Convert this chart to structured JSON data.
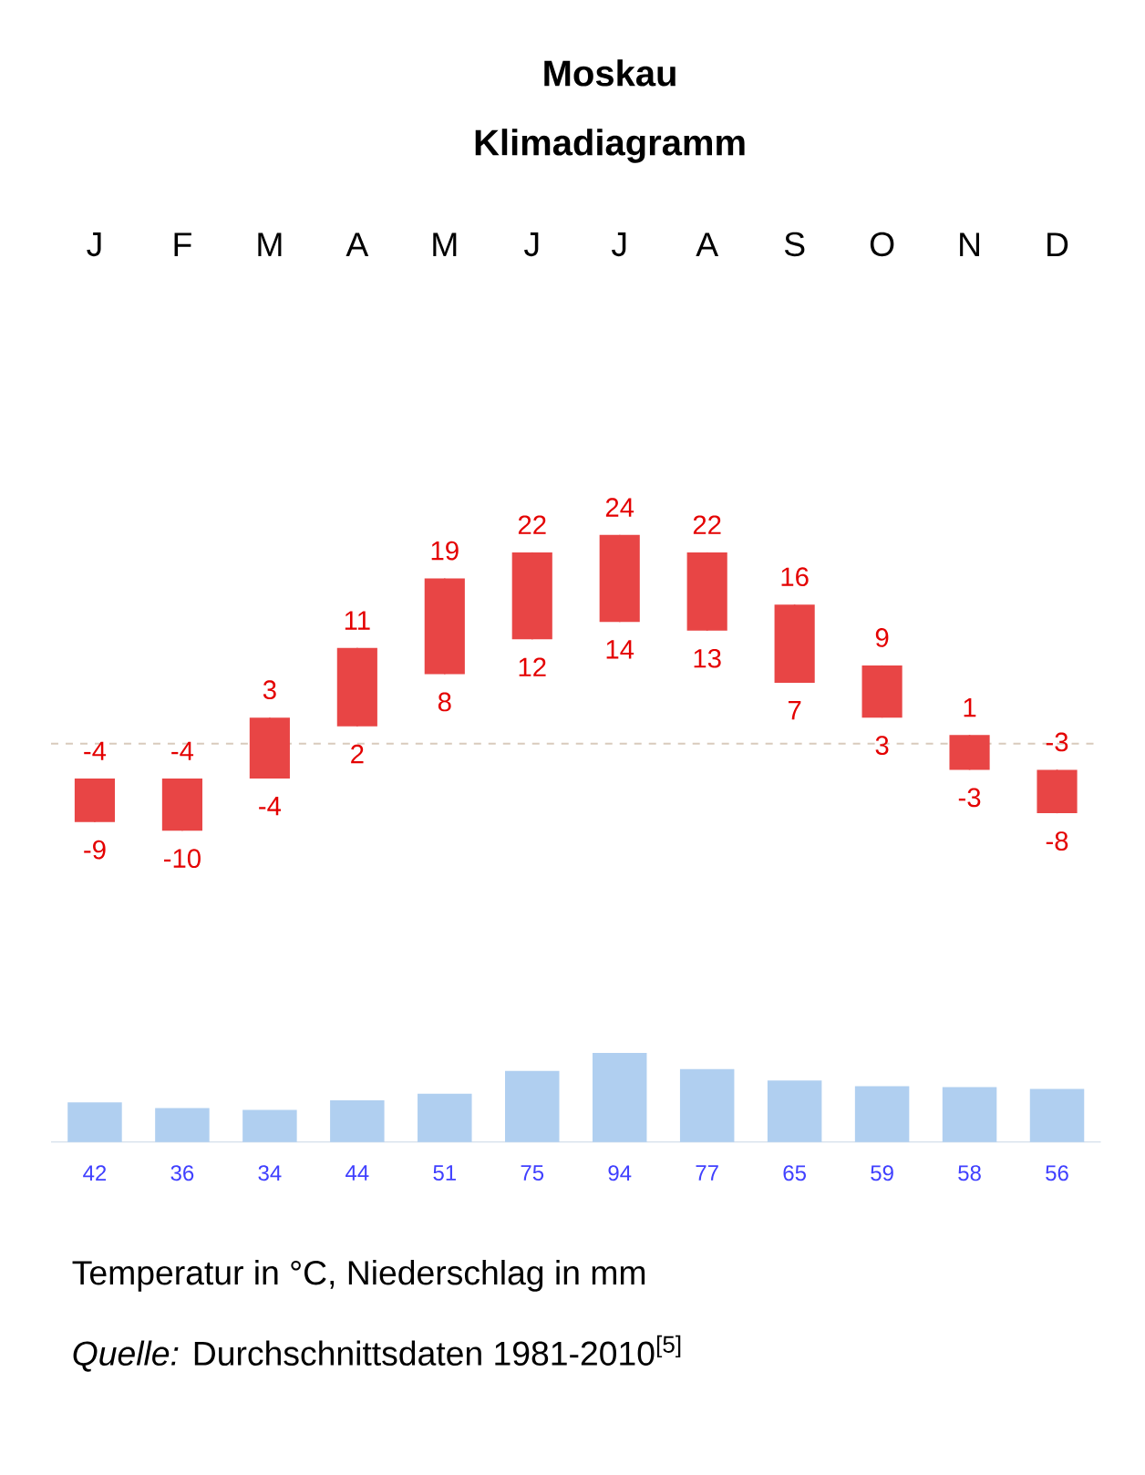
{
  "chart_data": [
    {
      "type": "candlestick",
      "title": "Moskau",
      "subtitle": "Klimadiagramm",
      "categories": [
        "J",
        "F",
        "M",
        "A",
        "M",
        "J",
        "J",
        "A",
        "S",
        "O",
        "N",
        "D"
      ],
      "ohlc": [
        [
          -9,
          -4,
          -9,
          -4
        ],
        [
          -10,
          -4,
          -10,
          -4
        ],
        [
          -4,
          3,
          -4,
          3
        ],
        [
          2,
          11,
          2,
          11
        ],
        [
          8,
          19,
          8,
          19
        ],
        [
          12,
          22,
          12,
          22
        ],
        [
          14,
          24,
          14,
          24
        ],
        [
          13,
          22,
          13,
          22
        ],
        [
          7,
          16,
          7,
          16
        ],
        [
          3,
          9,
          3,
          9
        ],
        [
          -3,
          1,
          -3,
          1
        ],
        [
          -8,
          -3,
          -8,
          -3
        ]
      ],
      "color": "#e84545",
      "tick_labels": "x",
      "annotations": [
        {
          "text": "-4",
          "x": "J",
          "y": -4
        },
        {
          "text": "-9",
          "x": "J",
          "y": -9
        },
        {
          "text": "-4",
          "x": "F",
          "y": -4
        },
        {
          "text": "-10",
          "x": "F",
          "y": -10
        },
        {
          "text": "3",
          "x": "M",
          "y": 3
        },
        {
          "text": "-4",
          "x": "M",
          "y": -4
        },
        {
          "text": "11",
          "x": "A",
          "y": 11
        },
        {
          "text": "2",
          "x": "A",
          "y": 2
        },
        "19",
        "8",
        "22",
        "12",
        "24",
        "14",
        "22",
        "13",
        {
          "text": "16",
          "x": "S",
          "y": 16
        },
        {
          "text": "7",
          "x": "S",
          "y": 7
        },
        {
          "text": "9",
          "x": "O",
          "y": 9
        },
        {
          "text": "3",
          "x": "O",
          "y": 3
        },
        {
          "text": "1",
          "x": "N",
          "y": 1
        },
        {
          "text": "-3",
          "x": "N",
          "y": -3
        },
        {
          "text": "-3",
          "x": "D",
          "y": -3
        },
        {
          "text": "-8",
          "x": "D",
          "y": -8
        }
      ],
      "ref_lines": [
        {
          "axis": "y",
          "value": 0,
          "color": "#d9cbbd",
          "line_style": "dashed"
        }
      ]
    },
    {
      "type": "bar",
      "categories": [
        null,
        null,
        null,
        null,
        null,
        null,
        null,
        null,
        null,
        null,
        null,
        null
      ],
      "values": [
        42,
        36,
        34,
        44,
        51,
        75,
        94,
        77,
        65,
        59,
        58,
        56
      ],
      "color": "#b0cff0",
      "ylim": [
        0,
        100
      ],
      "tick_labels": false,
      "data_labels": true,
      "annotations": [
        "Temperatur in °C,  Niederschlag in mm",
        "*Quelle:* Durchschnittsdaten 1981-2010$^{[5]}$"
      ]
    }
  ]
}
